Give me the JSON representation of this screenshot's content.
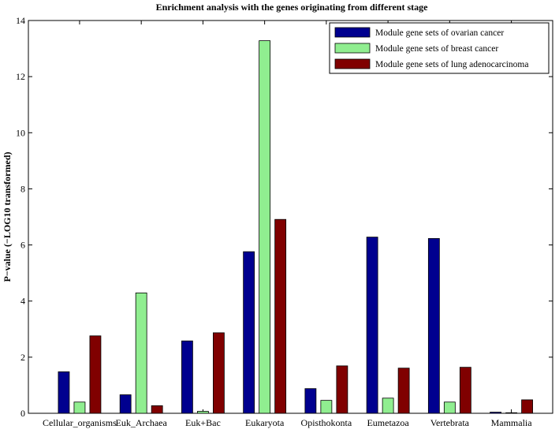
{
  "chart_data": {
    "type": "bar",
    "title": "Enrichment analysis with the genes originating from different stage",
    "xlabel": "",
    "ylabel": "P−value (−LOG10 transformed)",
    "ylim": [
      0,
      14
    ],
    "yticks": [
      0,
      2,
      4,
      6,
      8,
      10,
      12,
      14
    ],
    "grid": false,
    "legend_position": "top-right",
    "categories": [
      "Cellular_organisms",
      "Euk_Archaea",
      "Euk+Bac",
      "Eukaryota",
      "Opisthokonta",
      "Eumetazoa",
      "Vertebrata",
      "Mammalia"
    ],
    "series": [
      {
        "name": "Module gene sets of ovarian cancer",
        "color": "#00008f",
        "values": [
          1.48,
          0.66,
          2.58,
          5.76,
          0.88,
          6.28,
          6.23,
          0.04
        ]
      },
      {
        "name": "Module gene sets of breast cancer",
        "color": "#90ee90",
        "values": [
          0.4,
          4.29,
          0.07,
          13.28,
          0.46,
          0.54,
          0.4,
          0.02
        ]
      },
      {
        "name": "Module gene sets of lung adenocarcinoma",
        "color": "#800000",
        "values": [
          2.76,
          0.27,
          2.87,
          6.91,
          1.69,
          1.61,
          1.64,
          0.48
        ]
      }
    ]
  }
}
